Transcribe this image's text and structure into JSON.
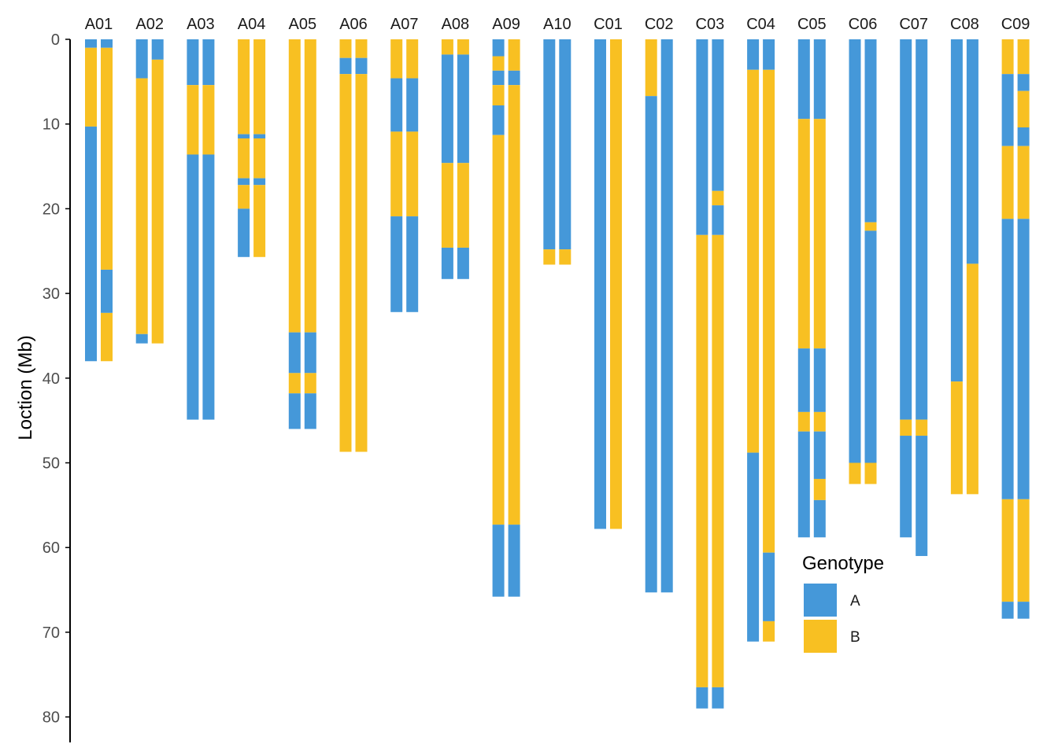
{
  "chart_data": {
    "type": "bar",
    "orientation": "vertical-segments",
    "ylabel": "Loction (Mb)",
    "ylim": [
      0,
      83
    ],
    "y_reversed": true,
    "y_ticks": [
      0,
      10,
      20,
      30,
      40,
      50,
      60,
      70,
      80
    ],
    "grid": false,
    "legend": {
      "title": "Genotype",
      "placement": "inside-bottom-right",
      "entries": [
        {
          "label": "A",
          "color": "#4598D9"
        },
        {
          "label": "B",
          "color": "#F8C022"
        }
      ]
    },
    "colors": {
      "A": "#4598D9",
      "B": "#F8C022"
    },
    "categories": [
      "A01",
      "A02",
      "A03",
      "A04",
      "A05",
      "A06",
      "A07",
      "A08",
      "A09",
      "A10",
      "C01",
      "C02",
      "C03",
      "C04",
      "C05",
      "C06",
      "C07",
      "C08",
      "C09"
    ],
    "chromosomes": [
      {
        "name": "A01",
        "strands": [
          [
            [
              "A",
              0,
              1
            ],
            [
              "B",
              1,
              10.3
            ],
            [
              "A",
              10.3,
              38
            ]
          ],
          [
            [
              "A",
              0,
              1
            ],
            [
              "B",
              1,
              27.2
            ],
            [
              "A",
              27.2,
              32.3
            ],
            [
              "B",
              32.3,
              38
            ]
          ]
        ]
      },
      {
        "name": "A02",
        "strands": [
          [
            [
              "A",
              0,
              4.6
            ],
            [
              "B",
              4.6,
              34.8
            ],
            [
              "A",
              34.8,
              35.9
            ]
          ],
          [
            [
              "A",
              0,
              2.4
            ],
            [
              "B",
              2.4,
              35.9
            ]
          ]
        ]
      },
      {
        "name": "A03",
        "strands": [
          [
            [
              "A",
              0,
              5.4
            ],
            [
              "B",
              5.4,
              13.6
            ],
            [
              "A",
              13.6,
              44.9
            ]
          ],
          [
            [
              "A",
              0,
              5.4
            ],
            [
              "B",
              5.4,
              13.6
            ],
            [
              "A",
              13.6,
              44.9
            ]
          ]
        ]
      },
      {
        "name": "A04",
        "strands": [
          [
            [
              "B",
              0,
              11.2
            ],
            [
              "A",
              11.2,
              11.7
            ],
            [
              "B",
              11.7,
              16.4
            ],
            [
              "A",
              16.4,
              17.2
            ],
            [
              "B",
              17.2,
              20
            ],
            [
              "A",
              20,
              25.7
            ]
          ],
          [
            [
              "B",
              0,
              11.2
            ],
            [
              "A",
              11.2,
              11.7
            ],
            [
              "B",
              11.7,
              16.4
            ],
            [
              "A",
              16.4,
              17.2
            ],
            [
              "B",
              17.2,
              25.7
            ]
          ]
        ]
      },
      {
        "name": "A05",
        "strands": [
          [
            [
              "B",
              0,
              34.6
            ],
            [
              "A",
              34.6,
              39.4
            ],
            [
              "B",
              39.4,
              41.8
            ],
            [
              "A",
              41.8,
              46
            ]
          ],
          [
            [
              "B",
              0,
              34.6
            ],
            [
              "A",
              34.6,
              39.4
            ],
            [
              "B",
              39.4,
              41.8
            ],
            [
              "A",
              41.8,
              46
            ]
          ]
        ]
      },
      {
        "name": "A06",
        "strands": [
          [
            [
              "B",
              0,
              2.2
            ],
            [
              "A",
              2.2,
              4.1
            ],
            [
              "B",
              4.1,
              48.7
            ]
          ],
          [
            [
              "B",
              0,
              2.2
            ],
            [
              "A",
              2.2,
              4.1
            ],
            [
              "B",
              4.1,
              48.7
            ]
          ]
        ]
      },
      {
        "name": "A07",
        "strands": [
          [
            [
              "B",
              0,
              4.6
            ],
            [
              "A",
              4.6,
              10.9
            ],
            [
              "B",
              10.9,
              20.9
            ],
            [
              "A",
              20.9,
              32.2
            ]
          ],
          [
            [
              "B",
              0,
              4.6
            ],
            [
              "A",
              4.6,
              10.9
            ],
            [
              "B",
              10.9,
              20.9
            ],
            [
              "A",
              20.9,
              32.2
            ]
          ]
        ]
      },
      {
        "name": "A08",
        "strands": [
          [
            [
              "B",
              0,
              1.8
            ],
            [
              "A",
              1.8,
              14.6
            ],
            [
              "B",
              14.6,
              24.6
            ],
            [
              "A",
              24.6,
              28.3
            ]
          ],
          [
            [
              "B",
              0,
              1.8
            ],
            [
              "A",
              1.8,
              14.6
            ],
            [
              "B",
              14.6,
              24.6
            ],
            [
              "A",
              24.6,
              28.3
            ]
          ]
        ]
      },
      {
        "name": "A09",
        "strands": [
          [
            [
              "A",
              0,
              2
            ],
            [
              "B",
              2,
              3.7
            ],
            [
              "A",
              3.7,
              5.4
            ],
            [
              "B",
              5.4,
              7.8
            ],
            [
              "A",
              7.8,
              11.3
            ],
            [
              "B",
              11.3,
              57.3
            ],
            [
              "A",
              57.3,
              65.8
            ]
          ],
          [
            [
              "B",
              0,
              3.7
            ],
            [
              "A",
              3.7,
              5.4
            ],
            [
              "B",
              5.4,
              57.3
            ],
            [
              "A",
              57.3,
              65.8
            ]
          ]
        ]
      },
      {
        "name": "A10",
        "strands": [
          [
            [
              "A",
              0,
              24.8
            ],
            [
              "B",
              24.8,
              26.6
            ]
          ],
          [
            [
              "A",
              0,
              24.8
            ],
            [
              "B",
              24.8,
              26.6
            ]
          ]
        ]
      },
      {
        "name": "C01",
        "strands": [
          [
            [
              "A",
              0,
              57.8
            ]
          ],
          [
            [
              "B",
              0,
              57.8
            ]
          ]
        ]
      },
      {
        "name": "C02",
        "strands": [
          [
            [
              "B",
              0,
              6.7
            ],
            [
              "A",
              6.7,
              65.3
            ]
          ],
          [
            [
              "A",
              0,
              65.3
            ]
          ]
        ]
      },
      {
        "name": "C03",
        "strands": [
          [
            [
              "A",
              0,
              23.1
            ],
            [
              "B",
              23.1,
              76.5
            ],
            [
              "A",
              76.5,
              79
            ]
          ],
          [
            [
              "A",
              0,
              17.9
            ],
            [
              "B",
              17.9,
              19.6
            ],
            [
              "A",
              19.6,
              23.1
            ],
            [
              "B",
              23.1,
              76.5
            ],
            [
              "A",
              76.5,
              79
            ]
          ]
        ]
      },
      {
        "name": "C04",
        "strands": [
          [
            [
              "A",
              0,
              3.6
            ],
            [
              "B",
              3.6,
              48.8
            ],
            [
              "A",
              48.8,
              71.1
            ]
          ],
          [
            [
              "A",
              0,
              3.6
            ],
            [
              "B",
              3.6,
              60.6
            ],
            [
              "A",
              60.6,
              68.7
            ],
            [
              "B",
              68.7,
              71.1
            ]
          ]
        ]
      },
      {
        "name": "C05",
        "strands": [
          [
            [
              "A",
              0,
              9.4
            ],
            [
              "B",
              9.4,
              36.5
            ],
            [
              "A",
              36.5,
              44
            ],
            [
              "B",
              44,
              46.3
            ],
            [
              "A",
              46.3,
              58.8
            ]
          ],
          [
            [
              "A",
              0,
              9.4
            ],
            [
              "B",
              9.4,
              36.5
            ],
            [
              "A",
              36.5,
              44
            ],
            [
              "B",
              44,
              46.3
            ],
            [
              "A",
              46.3,
              51.9
            ],
            [
              "B",
              51.9,
              54.4
            ],
            [
              "A",
              54.4,
              58.8
            ]
          ]
        ]
      },
      {
        "name": "C06",
        "strands": [
          [
            [
              "A",
              0,
              50
            ],
            [
              "B",
              50,
              52.5
            ]
          ],
          [
            [
              "A",
              0,
              21.6
            ],
            [
              "B",
              21.6,
              22.6
            ],
            [
              "A",
              22.6,
              50
            ],
            [
              "B",
              50,
              52.5
            ]
          ]
        ]
      },
      {
        "name": "C07",
        "strands": [
          [
            [
              "A",
              0,
              44.9
            ],
            [
              "B",
              44.9,
              46.8
            ],
            [
              "A",
              46.8,
              58.8
            ]
          ],
          [
            [
              "A",
              0,
              44.9
            ],
            [
              "B",
              44.9,
              46.8
            ],
            [
              "A",
              46.8,
              61
            ]
          ]
        ]
      },
      {
        "name": "C08",
        "strands": [
          [
            [
              "A",
              0,
              40.4
            ],
            [
              "B",
              40.4,
              53.7
            ]
          ],
          [
            [
              "A",
              0,
              26.5
            ],
            [
              "B",
              26.5,
              53.7
            ]
          ]
        ]
      },
      {
        "name": "C09",
        "strands": [
          [
            [
              "B",
              0,
              4.1
            ],
            [
              "A",
              4.1,
              12.6
            ],
            [
              "B",
              12.6,
              21.2
            ],
            [
              "A",
              21.2,
              54.3
            ],
            [
              "B",
              54.3,
              66.4
            ],
            [
              "A",
              66.4,
              68.4
            ]
          ],
          [
            [
              "B",
              0,
              4.1
            ],
            [
              "A",
              4.1,
              6.1
            ],
            [
              "B",
              6.1,
              10.4
            ],
            [
              "A",
              10.4,
              12.6
            ],
            [
              "B",
              12.6,
              21.2
            ],
            [
              "A",
              21.2,
              54.3
            ],
            [
              "B",
              54.3,
              66.4
            ],
            [
              "A",
              66.4,
              68.4
            ]
          ]
        ]
      }
    ]
  }
}
